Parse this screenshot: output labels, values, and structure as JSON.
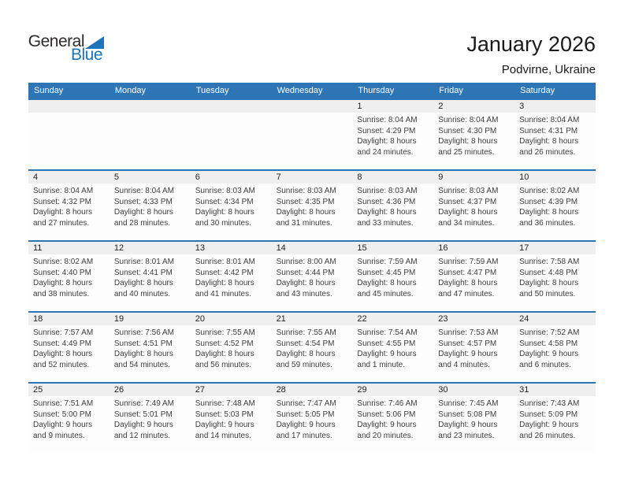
{
  "logo": {
    "part1": "General",
    "part2": "Blue",
    "triangle_icon_color": "#1c75bc"
  },
  "header": {
    "title": "January 2026",
    "subtitle": "Podvirne, Ukraine"
  },
  "colors": {
    "header_bar": "#2e75b5",
    "row_separator": "#2e75b5",
    "day_number_band": "#efefef",
    "logo_blue": "#1c75bc"
  },
  "calendar": {
    "weekdays": [
      "Sunday",
      "Monday",
      "Tuesday",
      "Wednesday",
      "Thursday",
      "Friday",
      "Saturday"
    ],
    "weeks": [
      [
        null,
        null,
        null,
        null,
        {
          "day": "1",
          "sunrise": "Sunrise: 8:04 AM",
          "sunset": "Sunset: 4:29 PM",
          "daylight": "Daylight: 8 hours and 24 minutes."
        },
        {
          "day": "2",
          "sunrise": "Sunrise: 8:04 AM",
          "sunset": "Sunset: 4:30 PM",
          "daylight": "Daylight: 8 hours and 25 minutes."
        },
        {
          "day": "3",
          "sunrise": "Sunrise: 8:04 AM",
          "sunset": "Sunset: 4:31 PM",
          "daylight": "Daylight: 8 hours and 26 minutes."
        }
      ],
      [
        {
          "day": "4",
          "sunrise": "Sunrise: 8:04 AM",
          "sunset": "Sunset: 4:32 PM",
          "daylight": "Daylight: 8 hours and 27 minutes."
        },
        {
          "day": "5",
          "sunrise": "Sunrise: 8:04 AM",
          "sunset": "Sunset: 4:33 PM",
          "daylight": "Daylight: 8 hours and 28 minutes."
        },
        {
          "day": "6",
          "sunrise": "Sunrise: 8:03 AM",
          "sunset": "Sunset: 4:34 PM",
          "daylight": "Daylight: 8 hours and 30 minutes."
        },
        {
          "day": "7",
          "sunrise": "Sunrise: 8:03 AM",
          "sunset": "Sunset: 4:35 PM",
          "daylight": "Daylight: 8 hours and 31 minutes."
        },
        {
          "day": "8",
          "sunrise": "Sunrise: 8:03 AM",
          "sunset": "Sunset: 4:36 PM",
          "daylight": "Daylight: 8 hours and 33 minutes."
        },
        {
          "day": "9",
          "sunrise": "Sunrise: 8:03 AM",
          "sunset": "Sunset: 4:37 PM",
          "daylight": "Daylight: 8 hours and 34 minutes."
        },
        {
          "day": "10",
          "sunrise": "Sunrise: 8:02 AM",
          "sunset": "Sunset: 4:39 PM",
          "daylight": "Daylight: 8 hours and 36 minutes."
        }
      ],
      [
        {
          "day": "11",
          "sunrise": "Sunrise: 8:02 AM",
          "sunset": "Sunset: 4:40 PM",
          "daylight": "Daylight: 8 hours and 38 minutes."
        },
        {
          "day": "12",
          "sunrise": "Sunrise: 8:01 AM",
          "sunset": "Sunset: 4:41 PM",
          "daylight": "Daylight: 8 hours and 40 minutes."
        },
        {
          "day": "13",
          "sunrise": "Sunrise: 8:01 AM",
          "sunset": "Sunset: 4:42 PM",
          "daylight": "Daylight: 8 hours and 41 minutes."
        },
        {
          "day": "14",
          "sunrise": "Sunrise: 8:00 AM",
          "sunset": "Sunset: 4:44 PM",
          "daylight": "Daylight: 8 hours and 43 minutes."
        },
        {
          "day": "15",
          "sunrise": "Sunrise: 7:59 AM",
          "sunset": "Sunset: 4:45 PM",
          "daylight": "Daylight: 8 hours and 45 minutes."
        },
        {
          "day": "16",
          "sunrise": "Sunrise: 7:59 AM",
          "sunset": "Sunset: 4:47 PM",
          "daylight": "Daylight: 8 hours and 47 minutes."
        },
        {
          "day": "17",
          "sunrise": "Sunrise: 7:58 AM",
          "sunset": "Sunset: 4:48 PM",
          "daylight": "Daylight: 8 hours and 50 minutes."
        }
      ],
      [
        {
          "day": "18",
          "sunrise": "Sunrise: 7:57 AM",
          "sunset": "Sunset: 4:49 PM",
          "daylight": "Daylight: 8 hours and 52 minutes."
        },
        {
          "day": "19",
          "sunrise": "Sunrise: 7:56 AM",
          "sunset": "Sunset: 4:51 PM",
          "daylight": "Daylight: 8 hours and 54 minutes."
        },
        {
          "day": "20",
          "sunrise": "Sunrise: 7:55 AM",
          "sunset": "Sunset: 4:52 PM",
          "daylight": "Daylight: 8 hours and 56 minutes."
        },
        {
          "day": "21",
          "sunrise": "Sunrise: 7:55 AM",
          "sunset": "Sunset: 4:54 PM",
          "daylight": "Daylight: 8 hours and 59 minutes."
        },
        {
          "day": "22",
          "sunrise": "Sunrise: 7:54 AM",
          "sunset": "Sunset: 4:55 PM",
          "daylight": "Daylight: 9 hours and 1 minute."
        },
        {
          "day": "23",
          "sunrise": "Sunrise: 7:53 AM",
          "sunset": "Sunset: 4:57 PM",
          "daylight": "Daylight: 9 hours and 4 minutes."
        },
        {
          "day": "24",
          "sunrise": "Sunrise: 7:52 AM",
          "sunset": "Sunset: 4:58 PM",
          "daylight": "Daylight: 9 hours and 6 minutes."
        }
      ],
      [
        {
          "day": "25",
          "sunrise": "Sunrise: 7:51 AM",
          "sunset": "Sunset: 5:00 PM",
          "daylight": "Daylight: 9 hours and 9 minutes."
        },
        {
          "day": "26",
          "sunrise": "Sunrise: 7:49 AM",
          "sunset": "Sunset: 5:01 PM",
          "daylight": "Daylight: 9 hours and 12 minutes."
        },
        {
          "day": "27",
          "sunrise": "Sunrise: 7:48 AM",
          "sunset": "Sunset: 5:03 PM",
          "daylight": "Daylight: 9 hours and 14 minutes."
        },
        {
          "day": "28",
          "sunrise": "Sunrise: 7:47 AM",
          "sunset": "Sunset: 5:05 PM",
          "daylight": "Daylight: 9 hours and 17 minutes."
        },
        {
          "day": "29",
          "sunrise": "Sunrise: 7:46 AM",
          "sunset": "Sunset: 5:06 PM",
          "daylight": "Daylight: 9 hours and 20 minutes."
        },
        {
          "day": "30",
          "sunrise": "Sunrise: 7:45 AM",
          "sunset": "Sunset: 5:08 PM",
          "daylight": "Daylight: 9 hours and 23 minutes."
        },
        {
          "day": "31",
          "sunrise": "Sunrise: 7:43 AM",
          "sunset": "Sunset: 5:09 PM",
          "daylight": "Daylight: 9 hours and 26 minutes."
        }
      ]
    ]
  }
}
